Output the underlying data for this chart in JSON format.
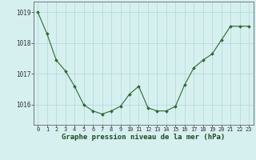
{
  "x": [
    0,
    1,
    2,
    3,
    4,
    5,
    6,
    7,
    8,
    9,
    10,
    11,
    12,
    13,
    14,
    15,
    16,
    17,
    18,
    19,
    20,
    21,
    22,
    23
  ],
  "y": [
    1019.0,
    1018.3,
    1017.45,
    1017.1,
    1016.6,
    1016.0,
    1015.8,
    1015.7,
    1015.8,
    1015.95,
    1016.35,
    1016.6,
    1015.9,
    1015.8,
    1015.8,
    1015.95,
    1016.65,
    1017.2,
    1017.45,
    1017.65,
    1018.1,
    1018.55,
    1018.55,
    1018.55
  ],
  "line_color": "#2d6a2d",
  "marker_color": "#2d6a2d",
  "bg_color": "#d6f0f0",
  "grid_color": "#b8dada",
  "ylabel_ticks": [
    1016,
    1017,
    1018,
    1019
  ],
  "xlabel_label": "Graphe pression niveau de la mer (hPa)",
  "xlim": [
    -0.5,
    23.5
  ],
  "ylim": [
    1015.35,
    1019.35
  ],
  "tick_fontsize": 5.0,
  "label_fontsize": 6.5
}
